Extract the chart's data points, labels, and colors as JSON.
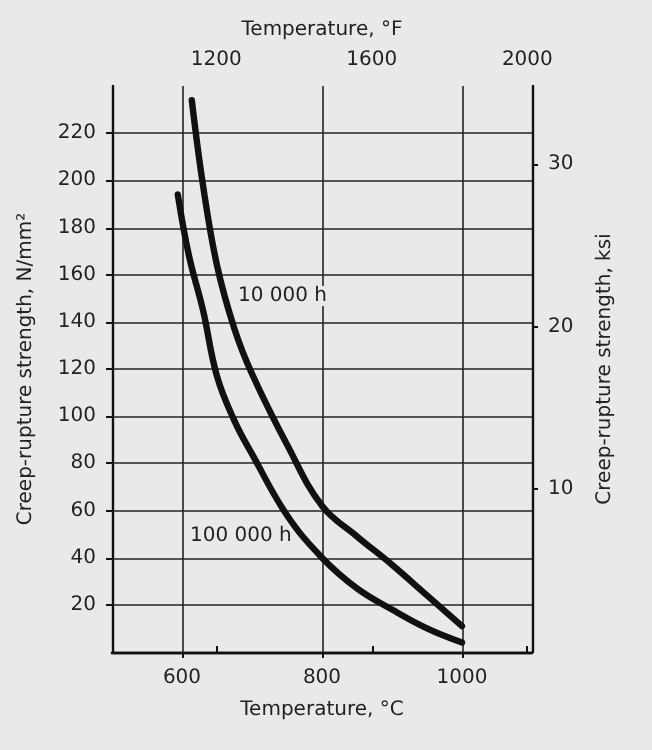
{
  "chart_data": {
    "type": "line",
    "xlabel": "Temperature, °C",
    "x2label": "Temperature, °F",
    "ylabel": "Creep-rupture strength, N/mm²",
    "y2label": "Creep-rupture strength, ksi",
    "series": [
      {
        "color": "#111111",
        "x": [
          614,
          630,
          650,
          675,
          700,
          750,
          800,
          850,
          900,
          950,
          1000
        ],
        "values": [
          234,
          198,
          164,
          137,
          118,
          88,
          62,
          49,
          37,
          24,
          11
        ]
      },
      {
        "color": "#111111",
        "x": [
          594,
          610,
          630,
          650,
          675,
          700,
          750,
          800,
          850,
          900,
          950,
          1000
        ],
        "values": [
          194,
          168,
          145,
          117,
          98,
          84,
          58,
          40,
          27,
          18,
          10,
          4
        ]
      }
    ],
    "xlim": [
      500,
      1100
    ],
    "xticks": [
      600,
      800,
      1000
    ],
    "x2lim": [
      932,
      2012
    ],
    "x2ticks": [
      1200,
      1600,
      2000
    ],
    "ylim": [
      0,
      240
    ],
    "yticks": [
      20,
      40,
      60,
      80,
      100,
      120,
      140,
      160,
      180,
      200,
      220
    ],
    "y2lim": [
      0,
      34.8
    ],
    "y2ticks": [
      10,
      20,
      30
    ],
    "annotations": [
      "10 000 h",
      "100 000 h"
    ],
    "grid": true,
    "marker": "none",
    "line_style": "solid"
  }
}
